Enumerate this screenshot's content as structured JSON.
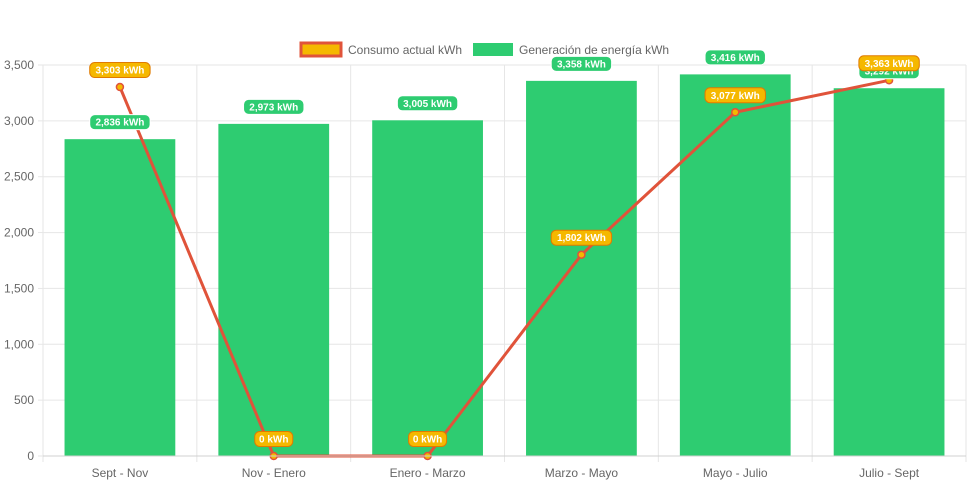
{
  "chart_data": {
    "type": "bar",
    "categories": [
      "Sept - Nov",
      "Nov - Enero",
      "Enero - Marzo",
      "Marzo - Mayo",
      "Mayo - Julio",
      "Julio - Sept"
    ],
    "series": [
      {
        "name": "Consumo actual kWh",
        "type": "line",
        "values": [
          3303,
          0,
          0,
          1802,
          3077,
          3363
        ],
        "data_labels": [
          "3,303 kWh",
          "0 kWh",
          "0 kWh",
          "1,802 kWh",
          "3,077 kWh",
          "3,363 kWh"
        ],
        "color": "#e0533a",
        "label_color": "#f5b800",
        "label_border": "#e07b00"
      },
      {
        "name": "Generación de energía kWh",
        "type": "bar",
        "values": [
          2836,
          2973,
          3005,
          3358,
          3416,
          3292
        ],
        "data_labels": [
          "2,836 kWh",
          "2,973 kWh",
          "3,005 kWh",
          "3,358 kWh",
          "3,416 kWh",
          "3,292 kWh"
        ],
        "color": "#2ecc71"
      }
    ],
    "ylim": [
      0,
      3500
    ],
    "yticks": [
      0,
      500,
      1000,
      1500,
      2000,
      2500,
      3000,
      3500
    ],
    "ytick_labels": [
      "0",
      "500",
      "1,000",
      "1,500",
      "2,000",
      "2,500",
      "3,000",
      "3,500"
    ],
    "grid": true,
    "legend": "top-center"
  }
}
